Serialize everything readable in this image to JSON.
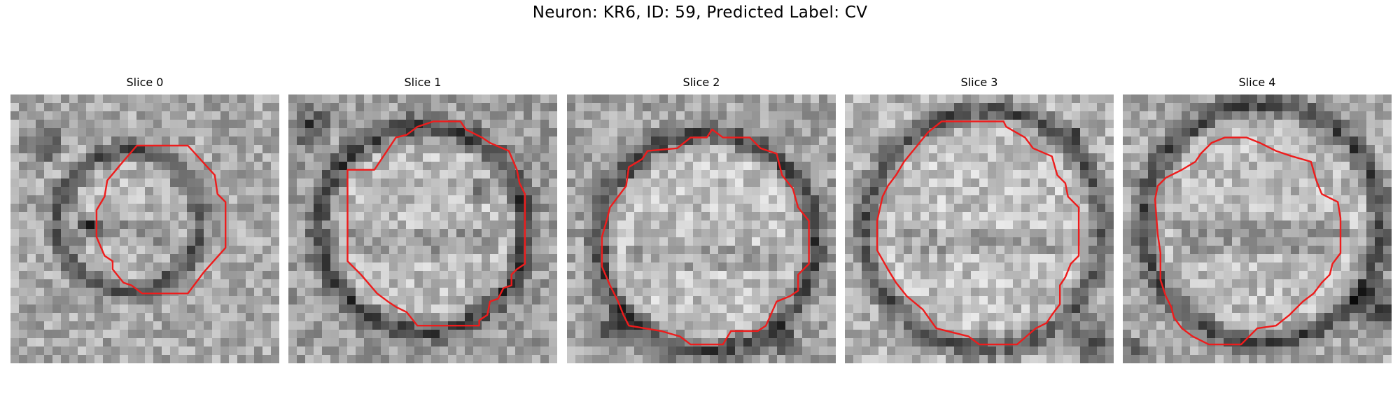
{
  "figure": {
    "title": "Neuron: KR6, ID: 59, Predicted Label: CV"
  },
  "panels": [
    {
      "title": "Slice 0"
    },
    {
      "title": "Slice 1"
    },
    {
      "title": "Slice 2"
    },
    {
      "title": "Slice 3"
    },
    {
      "title": "Slice 4"
    }
  ],
  "colors": {
    "contour": "#ee1c1c",
    "background": "#ffffff"
  }
}
